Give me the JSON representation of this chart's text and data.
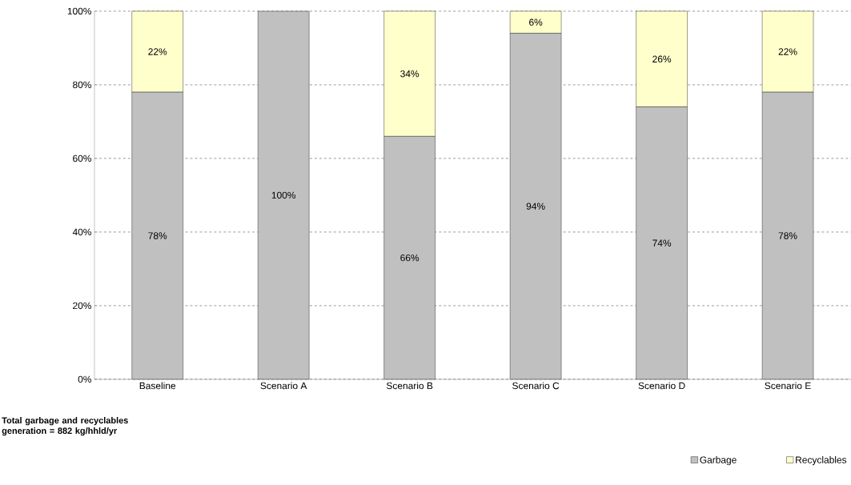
{
  "chart_data": {
    "type": "bar",
    "stacked": true,
    "categories": [
      "Baseline",
      "Scenario A",
      "Scenario B",
      "Scenario C",
      "Scenario D",
      "Scenario E"
    ],
    "series": [
      {
        "name": "Garbage",
        "color": "#c0c0c0",
        "values": [
          78,
          100,
          66,
          94,
          74,
          78
        ],
        "value_labels": [
          "78%",
          "100%",
          "66%",
          "94%",
          "74%",
          "78%"
        ]
      },
      {
        "name": "Recyclables",
        "color": "#ffffcc",
        "values": [
          22,
          0,
          34,
          6,
          26,
          22
        ],
        "value_labels": [
          "22%",
          null,
          "34%",
          "6%",
          "26%",
          "22%"
        ]
      }
    ],
    "ylim": [
      0,
      100
    ],
    "yticks": [
      {
        "value": 0,
        "label": "0%"
      },
      {
        "value": 20,
        "label": "20%"
      },
      {
        "value": 40,
        "label": "40%"
      },
      {
        "value": 60,
        "label": "60%"
      },
      {
        "value": 80,
        "label": "80%"
      },
      {
        "value": 100,
        "label": "100%"
      }
    ],
    "grid": "y",
    "legend": "bottom right",
    "annotations": [
      "**Total garbage and recyclables generation = 882 kg/hhld/yr**"
    ]
  }
}
